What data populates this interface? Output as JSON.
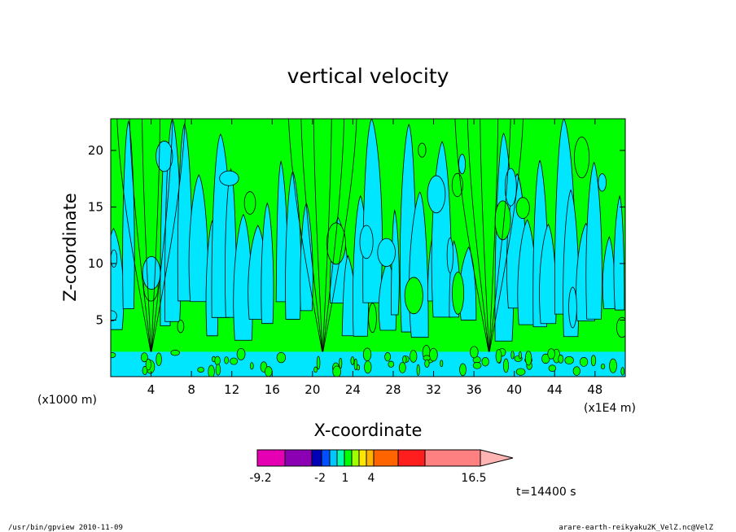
{
  "chart_data": {
    "type": "heatmap",
    "title": "vertical velocity",
    "xlabel": "X-coordinate",
    "ylabel": "Z-coordinate",
    "x_unit_left": "(x1000 m)",
    "x_unit_right": "(x1E4 m)",
    "xlim": [
      0,
      51
    ],
    "ylim": [
      0,
      22.8
    ],
    "x_ticks": [
      4,
      8,
      12,
      16,
      20,
      24,
      28,
      32,
      36,
      40,
      44,
      48
    ],
    "y_ticks": [
      5,
      10,
      15,
      20
    ],
    "grid": false,
    "fill_colors": {
      "negative": "#00e6ff",
      "positive": "#00ff00",
      "contour": "#000000"
    },
    "upward_columns_x": [
      4,
      21,
      37.5
    ],
    "colorbar": {
      "colors": [
        "#e600b4",
        "#8c00b4",
        "#0000b4",
        "#0050ff",
        "#00c8ff",
        "#00ffb4",
        "#00ff00",
        "#a0ff00",
        "#ffe600",
        "#ffb400",
        "#ff6400",
        "#ff1e1e",
        "#ff8080",
        "#ffb4b4"
      ],
      "tick_labels": [
        "-9.2",
        "-2",
        "1",
        "4",
        "16.5"
      ]
    },
    "time_label": "t=14400 s"
  },
  "footer": {
    "left": "/usr/bin/gpview  2010-11-09",
    "right": "arare-earth-reikyaku2K_VelZ.nc@VelZ"
  }
}
